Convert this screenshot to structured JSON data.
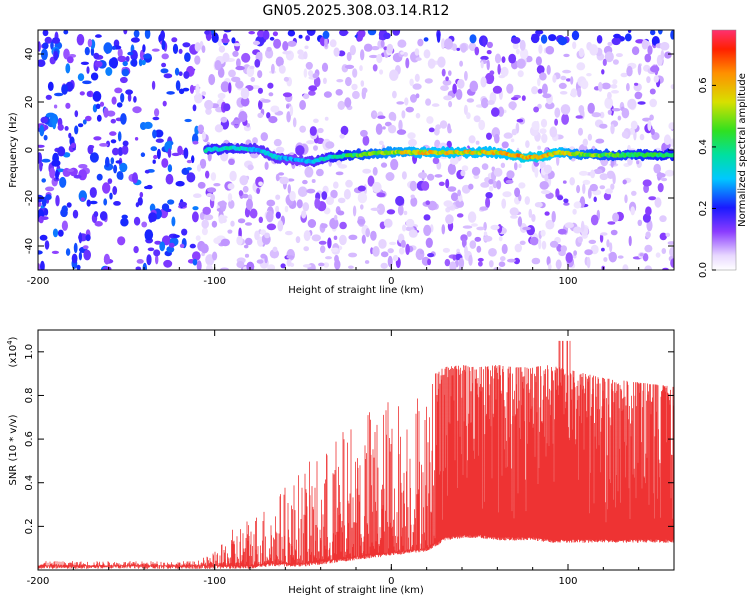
{
  "title": "GN05.2025.308.03.14.R12",
  "chart_data": [
    {
      "type": "heatmap",
      "xlabel": "Height of straight line (km)",
      "ylabel": "Frequency (Hz)",
      "xlim": [
        -200,
        160
      ],
      "ylim": [
        -50,
        50
      ],
      "xticks": [
        "-200",
        "-100",
        "0",
        "100"
      ],
      "yticks": [
        "-40",
        "-20",
        "0",
        "20",
        "40"
      ],
      "colorbar": {
        "label": "Normalized spectral amplitude",
        "range": [
          0.0,
          0.78
        ],
        "ticks": [
          "0.0",
          "0.2",
          "0.4",
          "0.6"
        ]
      },
      "ridge": {
        "x": [
          -105,
          -90,
          -75,
          -65,
          -55,
          -45,
          -35,
          -20,
          0,
          20,
          40,
          60,
          75,
          85,
          95,
          110,
          130,
          160
        ],
        "freq": [
          0,
          1,
          0,
          -3,
          -4,
          -5,
          -3,
          -2,
          -1,
          -1,
          -1,
          -1,
          -3,
          -3,
          -1,
          -2,
          -2,
          -2
        ],
        "amplitude": [
          0.4,
          0.4,
          0.35,
          0.35,
          0.3,
          0.35,
          0.4,
          0.5,
          0.6,
          0.65,
          0.65,
          0.65,
          0.7,
          0.7,
          0.65,
          0.55,
          0.5,
          0.45
        ]
      },
      "grid": false
    },
    {
      "type": "area",
      "xlabel": "Height of straight line (km)",
      "ylabel": "SNR (10 * v/v)",
      "multiplier": "(x10",
      "multiplier_exp": "4",
      "multiplier_close": ")",
      "xlim": [
        -200,
        160
      ],
      "ylim": [
        0,
        1.1
      ],
      "xticks": [
        "-200",
        "-100",
        "0",
        "100"
      ],
      "yticks": [
        "0.2",
        "0.4",
        "0.6",
        "0.8",
        "1.0"
      ],
      "envelope": {
        "x": [
          -200,
          -110,
          -100,
          -95,
          -90,
          -80,
          -70,
          -60,
          -50,
          -40,
          -30,
          -20,
          -10,
          0,
          10,
          20,
          25,
          30,
          40,
          50,
          60,
          70,
          80,
          90,
          100,
          110,
          120,
          130,
          140,
          150,
          160
        ],
        "lower": [
          0.02,
          0.02,
          0.02,
          0.02,
          0.02,
          0.02,
          0.03,
          0.03,
          0.03,
          0.04,
          0.05,
          0.06,
          0.07,
          0.08,
          0.09,
          0.1,
          0.12,
          0.15,
          0.16,
          0.16,
          0.15,
          0.15,
          0.15,
          0.14,
          0.14,
          0.14,
          0.14,
          0.14,
          0.14,
          0.14,
          0.14
        ],
        "upper": [
          0.04,
          0.04,
          0.08,
          0.12,
          0.18,
          0.25,
          0.3,
          0.38,
          0.45,
          0.52,
          0.6,
          0.68,
          0.75,
          0.78,
          0.82,
          0.85,
          0.9,
          0.93,
          0.94,
          0.93,
          0.94,
          0.93,
          0.93,
          0.94,
          0.92,
          0.9,
          0.88,
          0.87,
          0.86,
          0.85,
          0.84
        ]
      },
      "color": "#ee3333",
      "grid": false
    }
  ]
}
